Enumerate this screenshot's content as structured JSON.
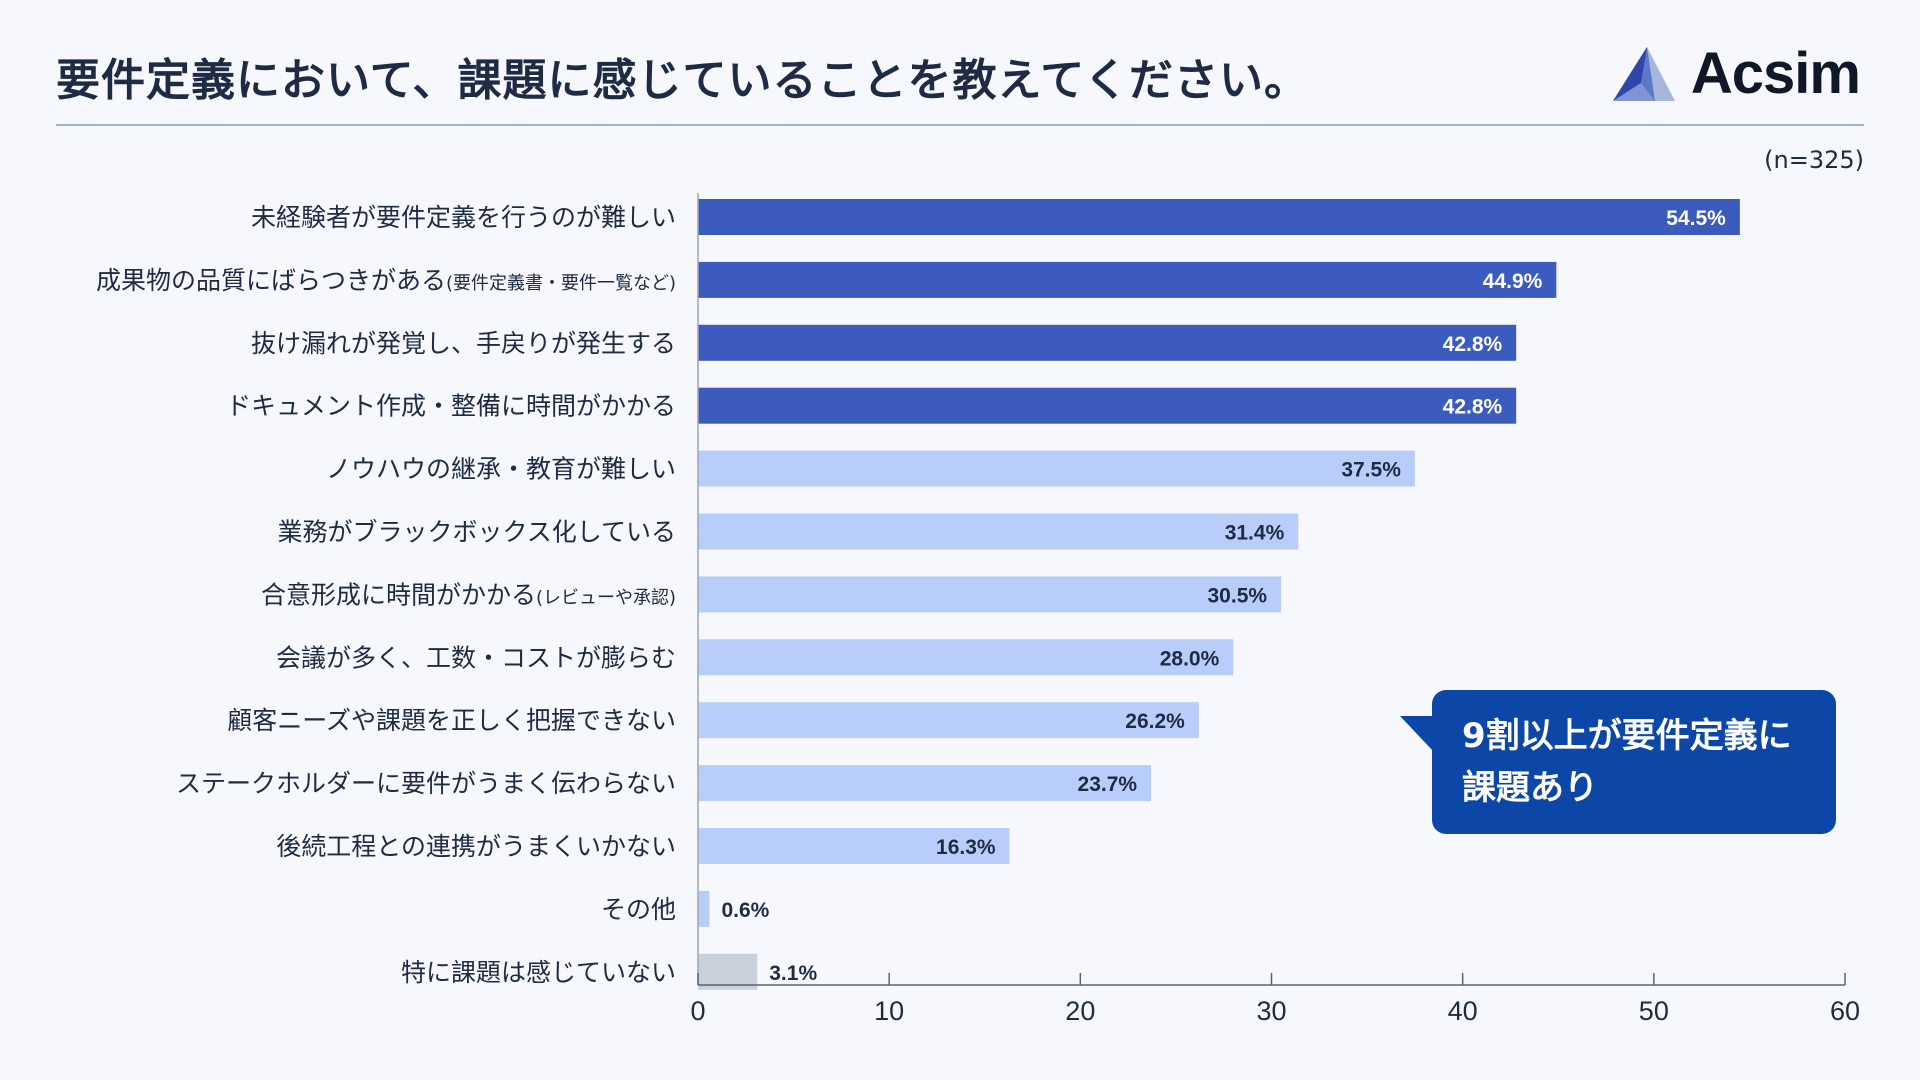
{
  "header": {
    "title": "要件定義において、課題に感じていることを教えてください。",
    "brand": "Acsim",
    "sample_size": "(n=325)"
  },
  "callout": {
    "line1": "9割以上が要件定義に",
    "line2": "課題あり"
  },
  "colors": {
    "dark_bar": "#3c5bbf",
    "light_bar": "#b9cdfb",
    "gray_bar": "#c9cfdb",
    "accent": "#0c46a6"
  },
  "chart_data": {
    "type": "bar",
    "orientation": "horizontal",
    "xlim": [
      0,
      60
    ],
    "xticks": [
      0,
      10,
      20,
      30,
      40,
      50,
      60
    ],
    "categories": [
      {
        "label": "未経験者が要件定義を行うのが難しい",
        "note": "",
        "value": 54.5,
        "display": "54.5%",
        "group": "dark"
      },
      {
        "label": "成果物の品質にばらつきがある",
        "note": "(要件定義書・要件一覧など)",
        "value": 44.9,
        "display": "44.9%",
        "group": "dark"
      },
      {
        "label": "抜け漏れが発覚し、手戻りが発生する",
        "note": "",
        "value": 42.8,
        "display": "42.8%",
        "group": "dark"
      },
      {
        "label": "ドキュメント作成・整備に時間がかかる",
        "note": "",
        "value": 42.8,
        "display": "42.8%",
        "group": "dark"
      },
      {
        "label": "ノウハウの継承・教育が難しい",
        "note": "",
        "value": 37.5,
        "display": "37.5%",
        "group": "light"
      },
      {
        "label": "業務がブラックボックス化している",
        "note": "",
        "value": 31.4,
        "display": "31.4%",
        "group": "light"
      },
      {
        "label": "合意形成に時間がかかる",
        "note": "(レビューや承認)",
        "value": 30.5,
        "display": "30.5%",
        "group": "light"
      },
      {
        "label": "会議が多く、工数・コストが膨らむ",
        "note": "",
        "value": 28.0,
        "display": "28.0%",
        "group": "light"
      },
      {
        "label": "顧客ニーズや課題を正しく把握できない",
        "note": "",
        "value": 26.2,
        "display": "26.2%",
        "group": "light"
      },
      {
        "label": "ステークホルダーに要件がうまく伝わらない",
        "note": "",
        "value": 23.7,
        "display": "23.7%",
        "group": "light"
      },
      {
        "label": "後続工程との連携がうまくいかない",
        "note": "",
        "value": 16.3,
        "display": "16.3%",
        "group": "light"
      },
      {
        "label": "その他",
        "note": "",
        "value": 0.6,
        "display": "0.6%",
        "group": "light"
      },
      {
        "label": "特に課題は感じていない",
        "note": "",
        "value": 3.1,
        "display": "3.1%",
        "group": "gray"
      }
    ]
  }
}
